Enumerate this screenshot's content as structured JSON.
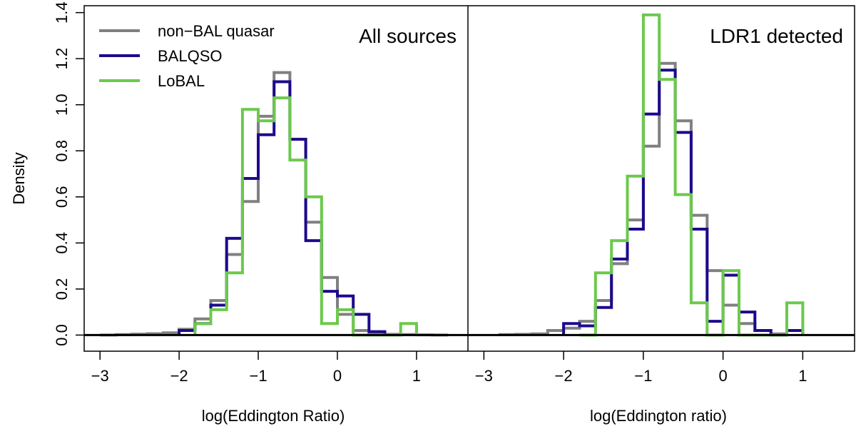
{
  "chart_data": {
    "type": "histogram",
    "ylabel": "Density",
    "ylim": [
      -0.07,
      1.43
    ],
    "yticks": [
      "0.0",
      "0.2",
      "0.4",
      "0.6",
      "0.8",
      "1.0",
      "1.2",
      "1.4"
    ],
    "legend": {
      "placement": "top-left",
      "entries": [
        {
          "label": "non−BAL quasar",
          "color": "#808080"
        },
        {
          "label": "BALQSO",
          "color": "#1c0a8c"
        },
        {
          "label": "LoBAL",
          "color": "#6cc94c"
        }
      ]
    },
    "panels": [
      {
        "label": "All sources",
        "xlabel": "log(Eddington Ratio)",
        "xlim": [
          -3.2,
          1.65
        ],
        "xticks": [
          "−3",
          "−2",
          "−1",
          "0",
          "1"
        ],
        "xtick_values": [
          -3,
          -2,
          -1,
          0,
          1
        ],
        "series": [
          {
            "name": "non−BAL quasar",
            "color": "#808080",
            "edges": [
              -3.0,
              -2.8,
              -2.6,
              -2.4,
              -2.2,
              -2.0,
              -1.8,
              -1.6,
              -1.4,
              -1.2,
              -1.0,
              -0.8,
              -0.6,
              -0.4,
              -0.2,
              0.0,
              0.2,
              0.4,
              0.6,
              0.8,
              1.0,
              1.2,
              1.4
            ],
            "values": [
              0.0,
              0.002,
              0.004,
              0.006,
              0.01,
              0.025,
              0.07,
              0.15,
              0.35,
              0.58,
              0.95,
              1.14,
              0.85,
              0.49,
              0.25,
              0.09,
              0.02,
              0.005,
              0.003,
              0.002,
              0.001,
              0.0
            ]
          },
          {
            "name": "BALQSO",
            "color": "#1c0a8c",
            "edges": [
              -2.0,
              -1.8,
              -1.6,
              -1.4,
              -1.2,
              -1.0,
              -0.8,
              -0.6,
              -0.4,
              -0.2,
              0.0,
              0.2,
              0.4,
              0.6
            ],
            "values": [
              0.02,
              0.05,
              0.13,
              0.42,
              0.68,
              0.87,
              1.1,
              0.85,
              0.41,
              0.19,
              0.17,
              0.09,
              0.015
            ]
          },
          {
            "name": "LoBAL",
            "color": "#6cc94c",
            "edges": [
              -1.8,
              -1.6,
              -1.4,
              -1.2,
              -1.0,
              -0.8,
              -0.6,
              -0.4,
              -0.2,
              0.0,
              0.2,
              0.4,
              0.6,
              0.8,
              1.0
            ],
            "values": [
              0.05,
              0.11,
              0.27,
              0.98,
              0.93,
              1.03,
              0.76,
              0.6,
              0.05,
              0.11,
              0.0,
              0.0,
              0.0,
              0.05
            ]
          }
        ]
      },
      {
        "label": "LDR1 detected",
        "xlabel": "log(Eddington ratio)",
        "xlim": [
          -3.2,
          1.65
        ],
        "xticks": [
          "−3",
          "−2",
          "−1",
          "0",
          "1"
        ],
        "xtick_values": [
          -3,
          -2,
          -1,
          0,
          1
        ],
        "series": [
          {
            "name": "non−BAL quasar",
            "color": "#808080",
            "edges": [
              -2.8,
              -2.6,
              -2.4,
              -2.2,
              -2.0,
              -1.8,
              -1.6,
              -1.4,
              -1.2,
              -1.0,
              -0.8,
              -0.6,
              -0.4,
              -0.2,
              0.0,
              0.2,
              0.4,
              0.6,
              0.8,
              1.0
            ],
            "values": [
              0.002,
              0.003,
              0.005,
              0.02,
              0.03,
              0.06,
              0.15,
              0.31,
              0.5,
              0.82,
              1.18,
              0.93,
              0.52,
              0.28,
              0.13,
              0.05,
              0.02,
              0.005,
              0.02
            ]
          },
          {
            "name": "BALQSO",
            "color": "#1c0a8c",
            "edges": [
              -2.0,
              -1.8,
              -1.6,
              -1.4,
              -1.2,
              -1.0,
              -0.8,
              -0.6,
              -0.4,
              -0.2,
              0.0,
              0.2,
              0.4,
              0.6,
              0.8,
              1.0
            ],
            "values": [
              0.05,
              0.04,
              0.12,
              0.33,
              0.46,
              0.96,
              1.15,
              0.88,
              0.46,
              0.06,
              0.26,
              0.1,
              0.02,
              0.0,
              0.02
            ]
          },
          {
            "name": "LoBAL",
            "color": "#6cc94c",
            "edges": [
              -1.8,
              -1.6,
              -1.4,
              -1.2,
              -1.0,
              -0.8,
              -0.6,
              -0.4,
              -0.2,
              0.0,
              0.2,
              0.4,
              0.6,
              0.8,
              1.0
            ],
            "values": [
              0.0,
              0.27,
              0.41,
              0.69,
              1.39,
              1.11,
              0.61,
              0.14,
              0.0,
              0.28,
              0.0,
              0.0,
              0.0,
              0.14
            ]
          }
        ]
      }
    ]
  }
}
